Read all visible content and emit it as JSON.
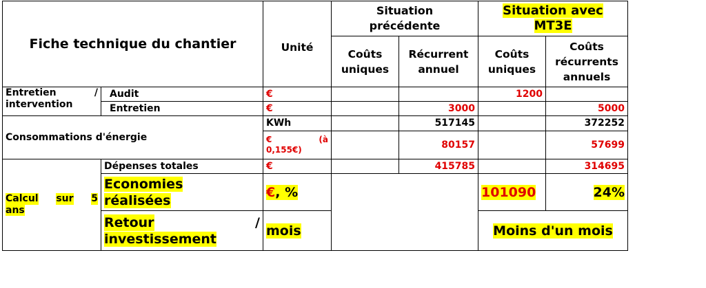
{
  "header": {
    "title": "Fiche technique du chantier",
    "unite": "Unité",
    "prev_situation_line1": "Situation",
    "prev_situation_line2": "précédente",
    "mt3e_line1": "Situation avec",
    "mt3e_line2": "MT3E",
    "couts_uniques_line1": "Coûts",
    "couts_uniques_line2": "uniques",
    "recurrent_line1": "Récurrent",
    "recurrent_line2": "annuel",
    "couts_recurrents_line1": "Coûts",
    "couts_recurrents_line2": "récurrents",
    "couts_recurrents_line3": "annuels"
  },
  "entretien": {
    "label_word1": "Entretien",
    "label_slash": "/",
    "label_word2": "intervention",
    "rows": [
      {
        "sub": "Audit",
        "unit": "€",
        "prev_unique": "",
        "prev_recurrent": "",
        "mt3e_unique": "1200",
        "mt3e_recurrent": ""
      },
      {
        "sub": "Entretien",
        "unit": "€",
        "prev_unique": "",
        "prev_recurrent": "3000",
        "mt3e_unique": "",
        "mt3e_recurrent": "5000"
      }
    ]
  },
  "energie": {
    "label": "Consommations d'énergie",
    "kwh": {
      "unit": "KWh",
      "prev_recurrent": "517145",
      "mt3e_recurrent": "372252"
    },
    "euro": {
      "unit_line1a": "€",
      "unit_line1b": "(à",
      "unit_line2": "0,155€)",
      "prev_recurrent": "80157",
      "mt3e_recurrent": "57699"
    }
  },
  "calcul": {
    "label_a": "Calcul",
    "label_b": "sur",
    "label_c": "5",
    "label_d": "ans",
    "depenses": {
      "label": "Dépenses totales",
      "unit": "€",
      "prev_recurrent": "415785",
      "mt3e_recurrent": "314695"
    },
    "economies": {
      "label_line1": "Economies",
      "label_line2": "réalisées",
      "unit_euro": "€",
      "unit_rest": ", %",
      "mt3e_unique": "101090",
      "mt3e_recurrent": "24%"
    },
    "retour": {
      "label_word1": "Retour",
      "label_slash": "/",
      "label_line2": "investissement",
      "unit": "mois",
      "mt3e_value": "Moins d'un mois"
    }
  }
}
